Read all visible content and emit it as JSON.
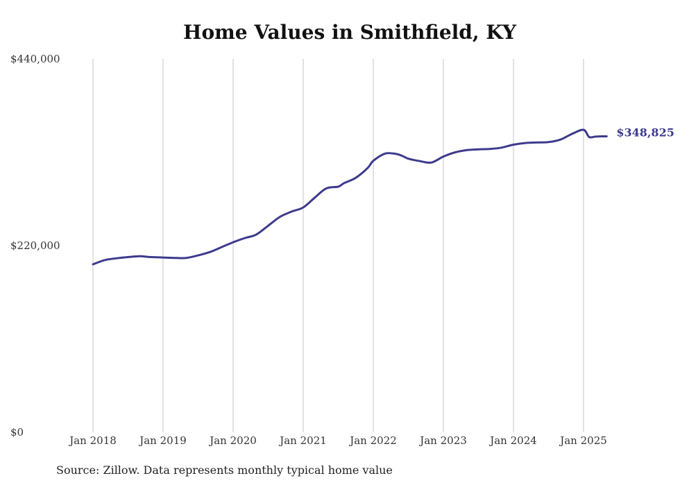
{
  "chart_data": {
    "type": "line",
    "title": "Home Values in Smithfield, KY",
    "xlabel": "",
    "ylabel": "",
    "ylim": [
      0,
      440000
    ],
    "y_ticks": [
      {
        "value": 0,
        "label": "$0"
      },
      {
        "value": 220000,
        "label": "$220,000"
      },
      {
        "value": 440000,
        "label": "$440,000"
      }
    ],
    "x_ticks": [
      {
        "value": 2018.0,
        "label": "Jan 2018"
      },
      {
        "value": 2019.0,
        "label": "Jan 2019"
      },
      {
        "value": 2020.0,
        "label": "Jan 2020"
      },
      {
        "value": 2021.0,
        "label": "Jan 2021"
      },
      {
        "value": 2022.0,
        "label": "Jan 2022"
      },
      {
        "value": 2023.0,
        "label": "Jan 2023"
      },
      {
        "value": 2024.0,
        "label": "Jan 2024"
      },
      {
        "value": 2025.0,
        "label": "Jan 2025"
      }
    ],
    "vertical_grid": true,
    "series": [
      {
        "color": "#3d3a8c",
        "x": [
          2018.0,
          2018.17,
          2018.33,
          2018.5,
          2018.67,
          2018.75,
          2018.83,
          2019.0,
          2019.17,
          2019.33,
          2019.5,
          2019.67,
          2019.83,
          2020.0,
          2020.17,
          2020.33,
          2020.5,
          2020.67,
          2020.83,
          2021.0,
          2021.17,
          2021.33,
          2021.5,
          2021.58,
          2021.75,
          2021.92,
          2022.0,
          2022.17,
          2022.33,
          2022.42,
          2022.5,
          2022.67,
          2022.83,
          2023.0,
          2023.17,
          2023.33,
          2023.5,
          2023.67,
          2023.83,
          2024.0,
          2024.17,
          2024.33,
          2024.5,
          2024.67,
          2024.83,
          2025.0,
          2025.08,
          2025.17,
          2025.25,
          2025.33
        ],
        "values": [
          198000,
          203000,
          205000,
          206500,
          207500,
          207000,
          206500,
          206000,
          205500,
          205500,
          208500,
          212500,
          218000,
          224000,
          229000,
          233000,
          243500,
          254000,
          260000,
          265000,
          277000,
          287500,
          289500,
          293500,
          300000,
          311500,
          320000,
          328500,
          328000,
          325500,
          322500,
          319500,
          318000,
          325000,
          330000,
          332500,
          333500,
          334000,
          335500,
          339000,
          341000,
          341500,
          342000,
          345000,
          351500,
          356500,
          348000,
          348500,
          348825,
          348825
        ]
      }
    ],
    "end_label": "$348,825"
  },
  "source_note": "Source: Zillow. Data represents monthly typical home value"
}
